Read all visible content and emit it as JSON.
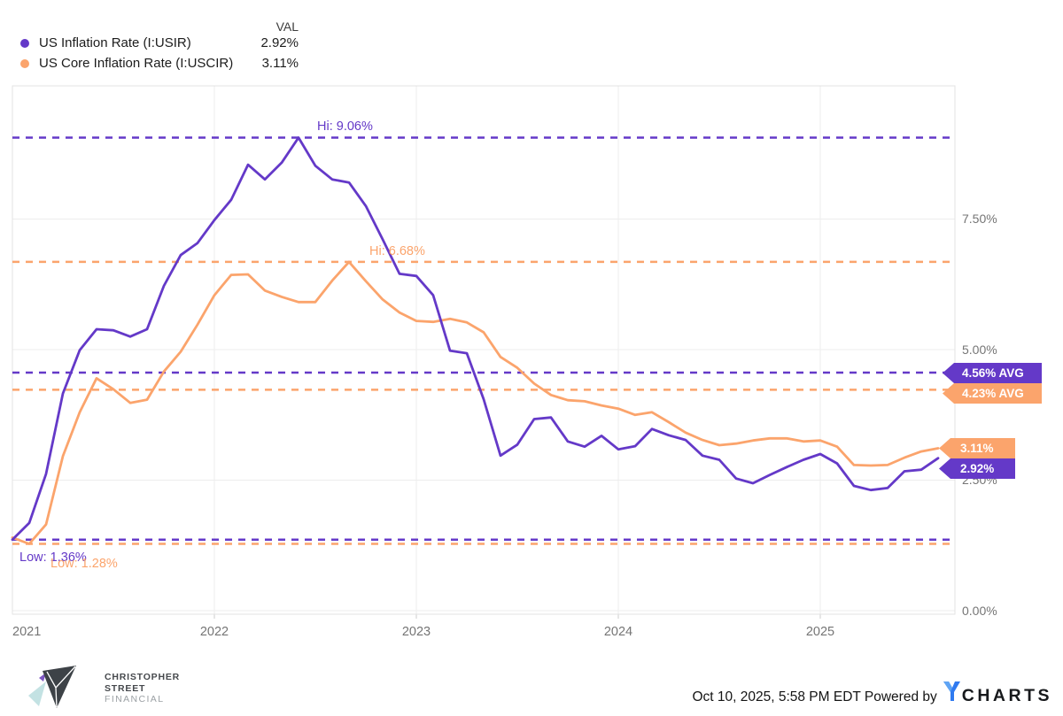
{
  "legend": {
    "val_header": "VAL",
    "rows": [
      {
        "label": "US Inflation Rate (I:USIR)",
        "value": "2.92%",
        "color": "#6439c8"
      },
      {
        "label": "US Core Inflation Rate (I:USCIR)",
        "value": "3.11%",
        "color": "#fba46c"
      }
    ]
  },
  "chart_data": {
    "type": "line",
    "title": "",
    "frequency": "monthly",
    "x_start": "2021-01",
    "x_end": "2025-08",
    "ylim": [
      0,
      10
    ],
    "grid": true,
    "legend_position": "top-left",
    "y_ticks": [
      {
        "label": "7.50%",
        "value": 7.5
      },
      {
        "label": "5.00%",
        "value": 5.0
      },
      {
        "label": "2.50%",
        "value": 2.5
      },
      {
        "label": "0.00%",
        "value": 0.0
      }
    ],
    "x_ticks": [
      {
        "label": "2021",
        "month_index": 0
      },
      {
        "label": "2022",
        "month_index": 12
      },
      {
        "label": "2023",
        "month_index": 24
      },
      {
        "label": "2024",
        "month_index": 36
      },
      {
        "label": "2025",
        "month_index": 48
      }
    ],
    "series": [
      {
        "name": "US Inflation Rate (I:USIR)",
        "color": "#6439c8",
        "values": [
          1.36,
          1.68,
          2.62,
          4.16,
          4.99,
          5.39,
          5.37,
          5.25,
          5.39,
          6.22,
          6.81,
          7.04,
          7.48,
          7.87,
          8.54,
          8.26,
          8.58,
          9.06,
          8.52,
          8.26,
          8.2,
          7.75,
          7.11,
          6.45,
          6.41,
          6.04,
          4.98,
          4.93,
          4.05,
          2.97,
          3.18,
          3.67,
          3.7,
          3.24,
          3.14,
          3.35,
          3.09,
          3.15,
          3.48,
          3.36,
          3.27,
          2.97,
          2.89,
          2.53,
          2.44,
          2.6,
          2.75,
          2.89,
          3.0,
          2.82,
          2.39,
          2.31,
          2.35,
          2.67,
          2.7,
          2.92
        ],
        "hi": {
          "value": 9.06,
          "label": "Hi: 9.06%"
        },
        "low": {
          "value": 1.36,
          "label": "Low: 1.36%"
        },
        "avg": {
          "value": 4.56,
          "label": "4.56% AVG"
        },
        "last": {
          "value": 2.92,
          "label": "2.92%"
        }
      },
      {
        "name": "US Core Inflation Rate (I:USCIR)",
        "color": "#fba46c",
        "values": [
          1.4,
          1.28,
          1.65,
          2.96,
          3.8,
          4.45,
          4.24,
          3.98,
          4.04,
          4.58,
          4.96,
          5.48,
          6.04,
          6.43,
          6.44,
          6.13,
          6.01,
          5.91,
          5.91,
          6.32,
          6.68,
          6.31,
          5.96,
          5.71,
          5.55,
          5.53,
          5.59,
          5.52,
          5.33,
          4.86,
          4.65,
          4.35,
          4.13,
          4.03,
          4.01,
          3.93,
          3.87,
          3.75,
          3.8,
          3.61,
          3.41,
          3.27,
          3.17,
          3.2,
          3.26,
          3.3,
          3.3,
          3.24,
          3.26,
          3.14,
          2.79,
          2.78,
          2.79,
          2.93,
          3.05,
          3.11
        ],
        "hi": {
          "value": 6.68,
          "label": "Hi: 6.68%"
        },
        "low": {
          "value": 1.28,
          "label": "Low: 1.28%"
        },
        "avg": {
          "value": 4.23,
          "label": "4.23% AVG"
        },
        "last": {
          "value": 3.11,
          "label": "3.11%"
        }
      }
    ]
  },
  "footer": {
    "logo_lines": [
      "CHRISTOPHER",
      "STREET",
      "FINANCIAL"
    ],
    "timestamp_powered": "Oct 10, 2025, 5:58 PM EDT Powered by",
    "brand_rest": "CHARTS"
  },
  "icons": {
    "csf_mark": "paper-plane-logo",
    "brand_y": "ycharts-y-logo"
  },
  "colors": {
    "purple": "#6439c8",
    "orange": "#fba46c",
    "grid": "#ededed",
    "border": "#e3e3e3",
    "axis_text": "#757575"
  }
}
